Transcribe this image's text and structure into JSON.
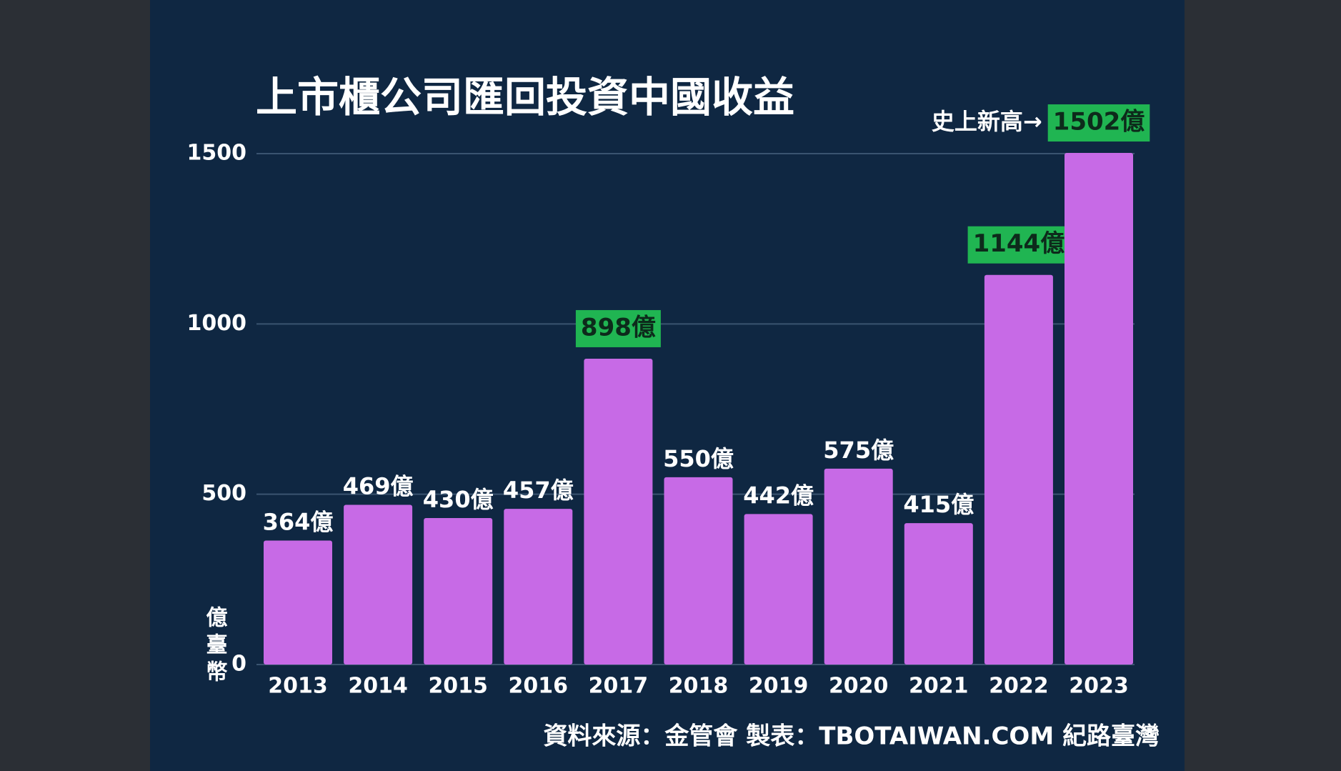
{
  "chart_data": {
    "type": "bar",
    "title": "上市櫃公司匯回投資中國收益",
    "categories": [
      "2013",
      "2014",
      "2015",
      "2016",
      "2017",
      "2018",
      "2019",
      "2020",
      "2021",
      "2022",
      "2023"
    ],
    "values": [
      364,
      469,
      430,
      457,
      898,
      550,
      442,
      575,
      415,
      1144,
      1502
    ],
    "value_labels": [
      "364億",
      "469億",
      "430億",
      "457億",
      "898億",
      "550億",
      "442億",
      "575億",
      "415億",
      "1144億",
      "1502億"
    ],
    "highlighted": [
      false,
      false,
      false,
      false,
      true,
      false,
      false,
      false,
      false,
      true,
      true
    ],
    "color": "#c76ae6",
    "highlight_color": "#20b552",
    "ylim": [
      0,
      1500
    ],
    "yticks": [
      0,
      500,
      1000,
      1500
    ],
    "grid": true,
    "ylabel": "億臺幣",
    "annotation": "史上新高→",
    "source": "資料來源：金管會  製表：TBOTAIWAN.COM 紀路臺灣"
  }
}
